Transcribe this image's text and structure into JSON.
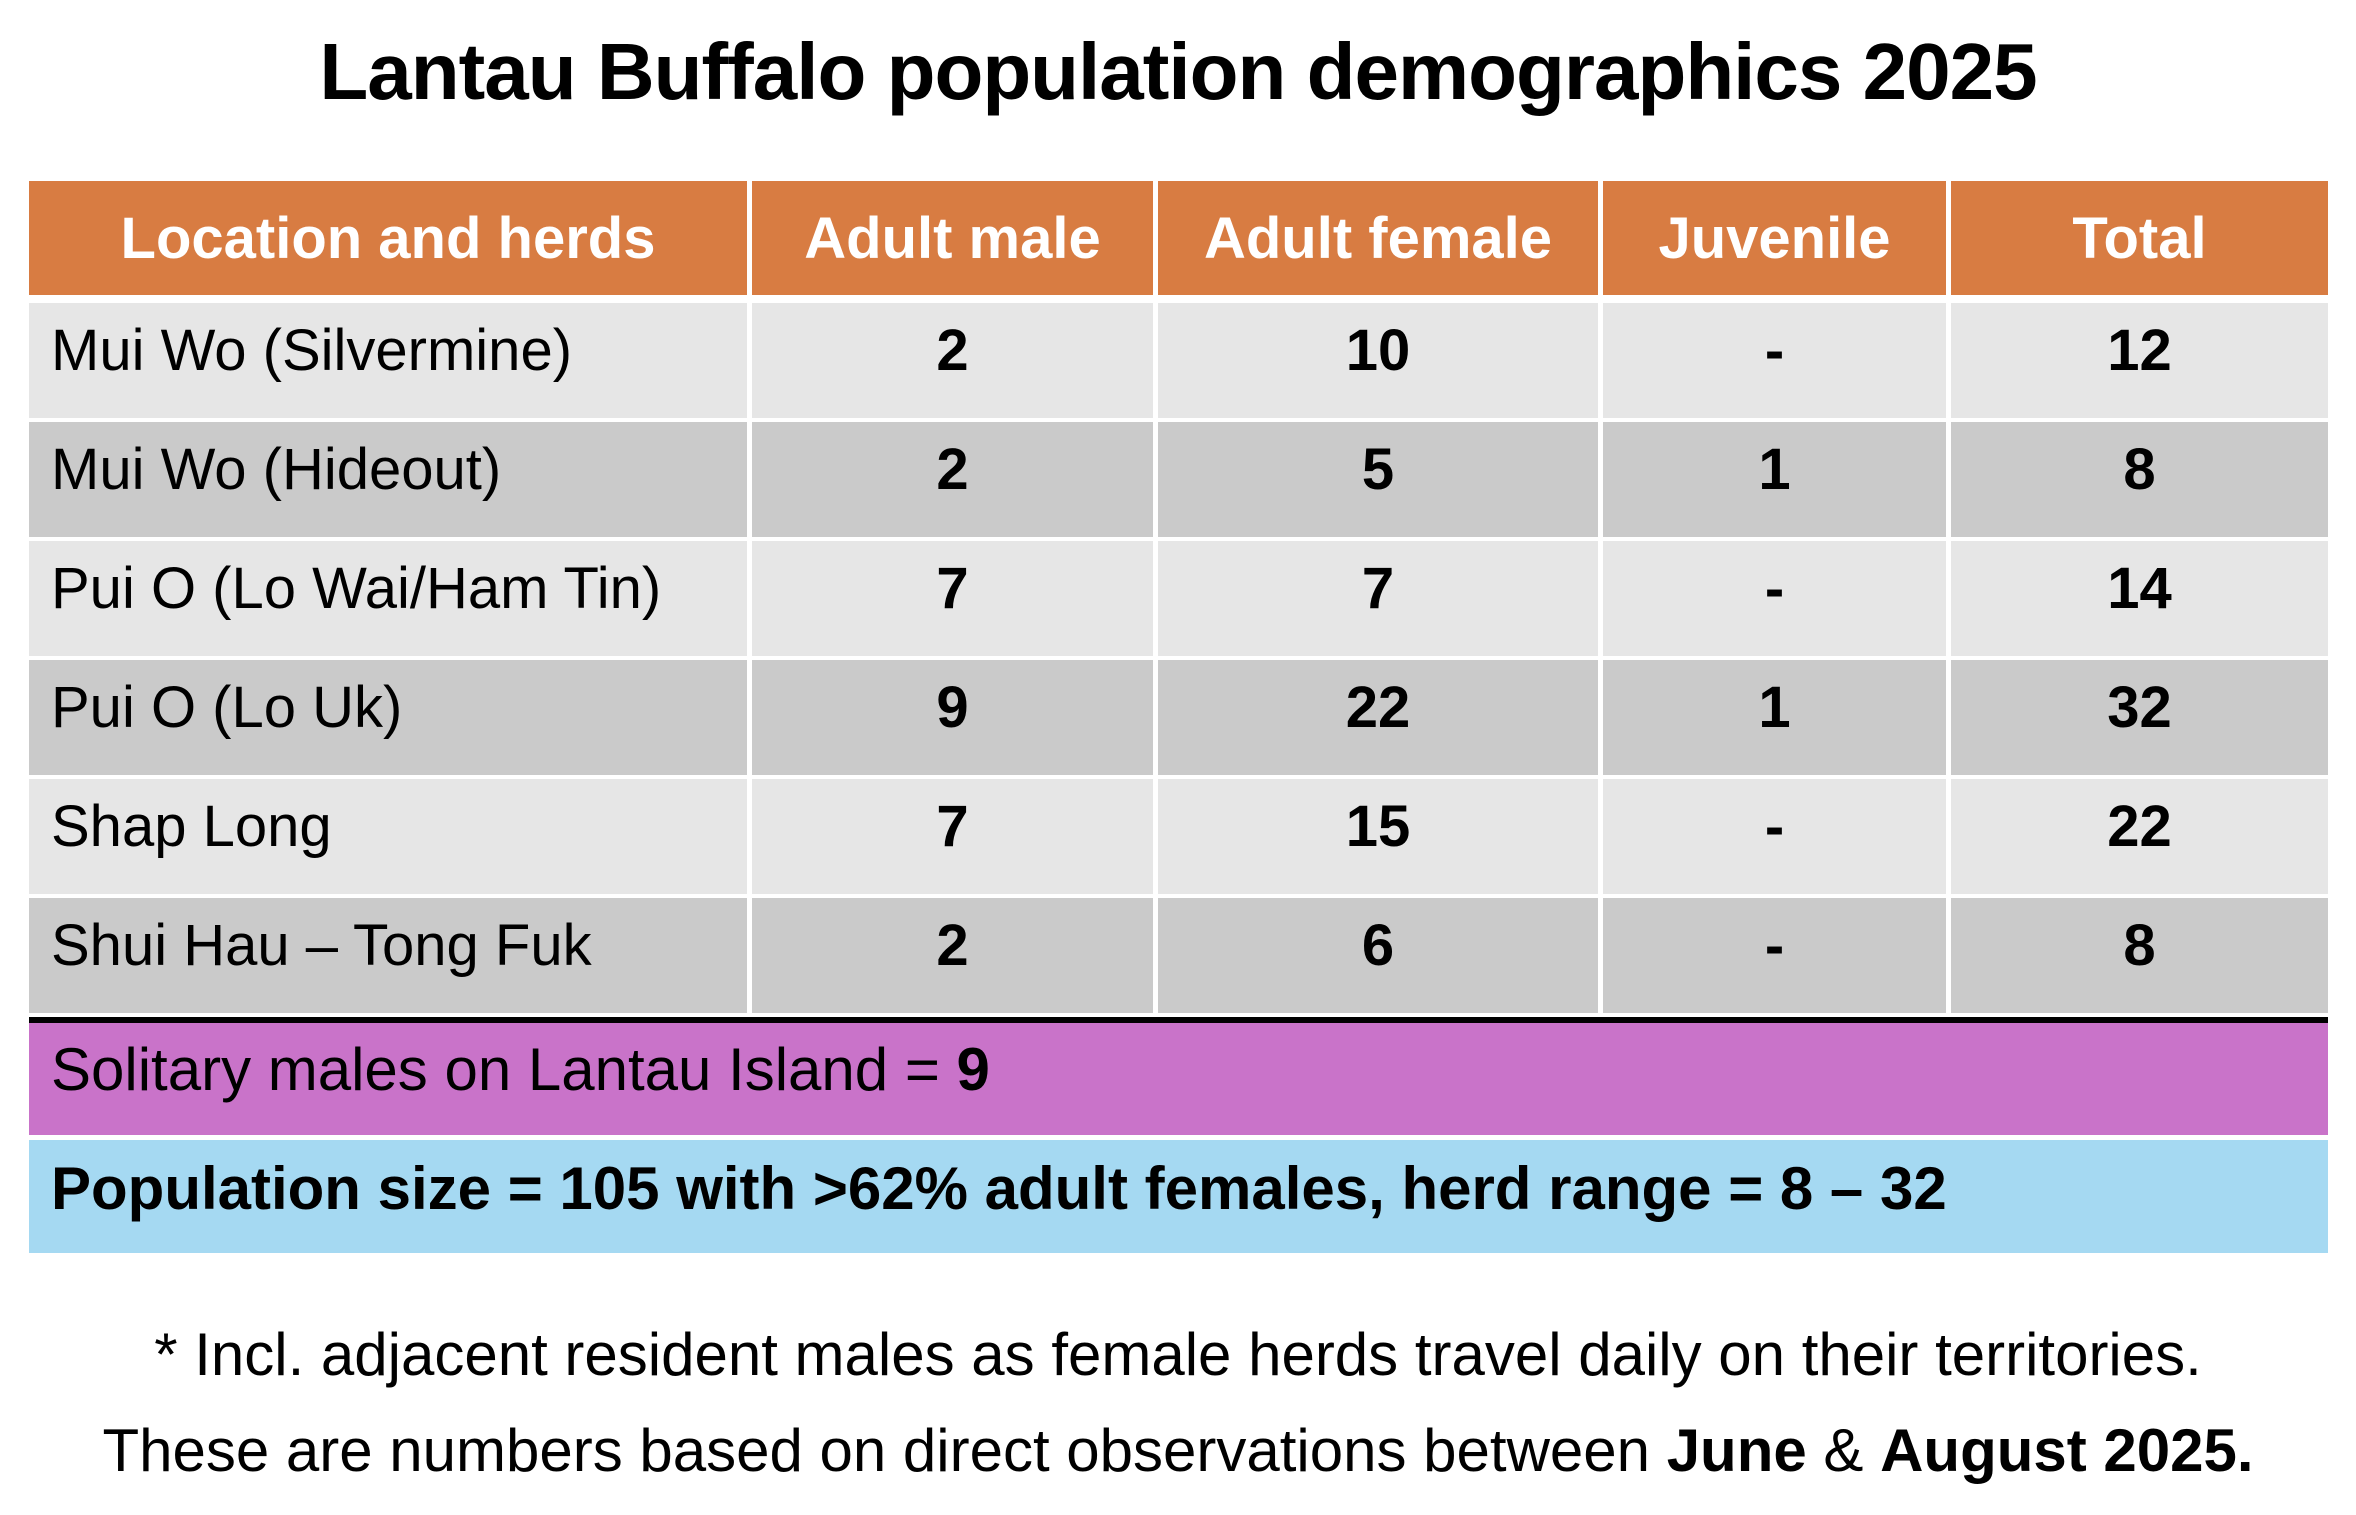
{
  "title": "Lantau Buffalo population demographics 2025",
  "colors": {
    "header_bg": "#D87C42",
    "header_text": "#FFFFFF",
    "row_dark": "#CACACA",
    "row_light": "#E6E6E6",
    "solitary_bg": "#C973C9",
    "population_bg": "#A5D9F2",
    "divider": "#000000",
    "text": "#000000"
  },
  "table": {
    "headers": [
      "Location and herds",
      "Adult male",
      "Adult female",
      "Juvenile",
      "Total"
    ],
    "rows": [
      {
        "cells": [
          "Mui Wo (Silvermine)",
          "2",
          "10",
          "-",
          "12"
        ]
      },
      {
        "cells": [
          "Mui Wo (Hideout)",
          "2",
          "5",
          "1",
          "8"
        ]
      },
      {
        "cells": [
          "Pui O (Lo Wai/Ham Tin)",
          "7",
          "7",
          "-",
          "14"
        ]
      },
      {
        "cells": [
          "Pui O (Lo Uk)",
          "9",
          "22",
          "1",
          "32"
        ]
      },
      {
        "cells": [
          "Shap Long",
          "7",
          "15",
          "-",
          "22"
        ]
      },
      {
        "cells": [
          "Shui Hau – Tong Fuk",
          "2",
          "6",
          "-",
          "8"
        ]
      }
    ]
  },
  "summary": {
    "solitary_label": "Solitary males on Lantau Island = ",
    "solitary_value": "9",
    "population_text": "Population size = 105 with >62% adult females, herd range = 8 – 32"
  },
  "footnotes": {
    "line1": "* Incl. adjacent resident males as female herds travel daily on their territories.",
    "line2_prefix": "These are numbers based on direct observations between ",
    "line2_bold1": "June",
    "line2_mid": " & ",
    "line2_bold2": "August 2025."
  },
  "chart_data": {
    "type": "table",
    "title": "Lantau Buffalo population demographics 2025",
    "columns": [
      "Location and herds",
      "Adult male",
      "Adult female",
      "Juvenile",
      "Total"
    ],
    "rows": [
      [
        "Mui Wo (Silvermine)",
        2,
        10,
        "-",
        12
      ],
      [
        "Mui Wo (Hideout)",
        2,
        5,
        1,
        8
      ],
      [
        "Pui O (Lo Wai/Ham Tin)",
        7,
        7,
        "-",
        14
      ],
      [
        "Pui O (Lo Uk)",
        9,
        22,
        1,
        32
      ],
      [
        "Shap Long",
        7,
        15,
        "-",
        22
      ],
      [
        "Shui Hau – Tong Fuk",
        2,
        6,
        "-",
        8
      ]
    ],
    "annotations": [
      "Solitary males on Lantau Island = 9",
      "Population size = 105 with >62% adult females, herd range = 8 – 32",
      "* Incl. adjacent resident males as female herds travel daily on their territories.",
      "These are numbers based on direct observations between June & August 2025."
    ]
  }
}
